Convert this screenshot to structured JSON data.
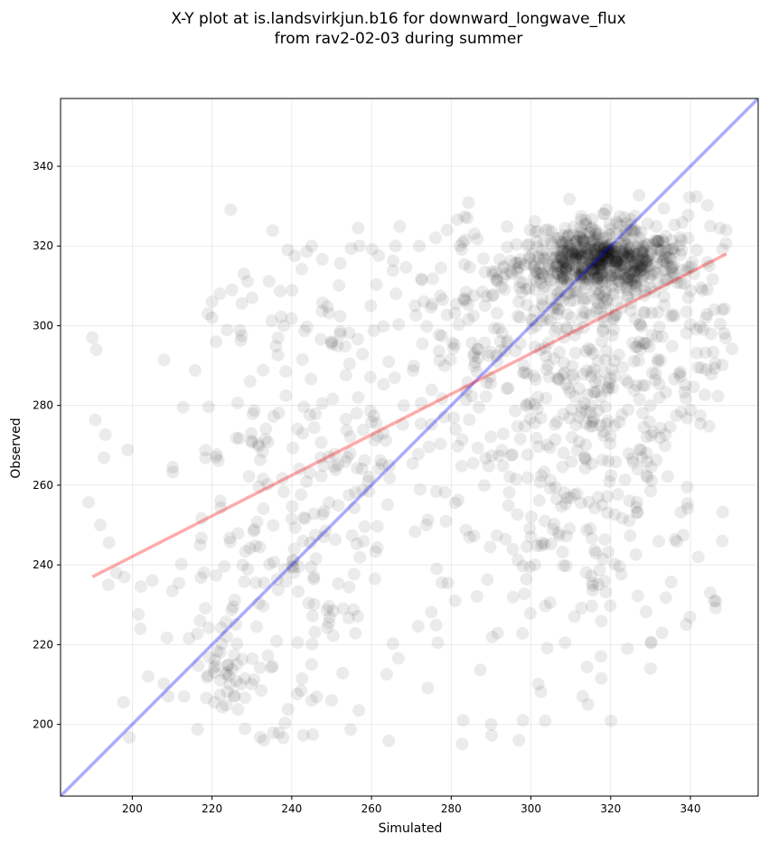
{
  "chart_data": {
    "type": "scatter",
    "title_line1": "X-Y plot at is.landsvirkjun.b16 for downward_longwave_flux",
    "title_line2": "from rav2-02-03 during summer",
    "xlabel": "Simulated",
    "ylabel": "Observed",
    "xlim": [
      182,
      357
    ],
    "ylim": [
      182,
      357
    ],
    "xticks": [
      200,
      220,
      240,
      260,
      280,
      300,
      320,
      340
    ],
    "yticks": [
      200,
      220,
      240,
      260,
      280,
      300,
      320,
      340
    ],
    "grid": true,
    "point_color": "#000000",
    "identity_line": {
      "color": "#0000ff",
      "x": [
        182,
        357
      ],
      "y": [
        182,
        357
      ]
    },
    "regression_line": {
      "color": "#ff0000",
      "x": [
        190,
        349
      ],
      "y": [
        237,
        318
      ]
    },
    "clusters": [
      {
        "cx": 317,
        "cy": 316,
        "sx": 10,
        "sy": 3.5,
        "n": 420
      },
      {
        "cx": 320,
        "cy": 316,
        "sx": 12,
        "sy": 7,
        "n": 260
      },
      {
        "cx": 315,
        "cy": 288,
        "sx": 13,
        "sy": 14,
        "n": 220
      },
      {
        "cx": 312,
        "cy": 248,
        "sx": 16,
        "sy": 18,
        "n": 170
      },
      {
        "cx": 290,
        "cy": 300,
        "sx": 14,
        "sy": 14,
        "n": 100
      },
      {
        "cx": 255,
        "cy": 275,
        "sx": 25,
        "sy": 32,
        "n": 240
      },
      {
        "cx": 235,
        "cy": 235,
        "sx": 14,
        "sy": 25,
        "n": 150
      },
      {
        "cx": 222,
        "cy": 212,
        "sx": 3,
        "sy": 6,
        "n": 30
      },
      {
        "cx": 340,
        "cy": 300,
        "sx": 6,
        "sy": 25,
        "n": 60
      }
    ],
    "points": [
      [
        190,
        297
      ],
      [
        191,
        294
      ],
      [
        192,
        250
      ],
      [
        194,
        235
      ],
      [
        196,
        238
      ],
      [
        198,
        237
      ],
      [
        202,
        224
      ],
      [
        204,
        212
      ],
      [
        209,
        207
      ],
      [
        213,
        207
      ],
      [
        217,
        226
      ],
      [
        218,
        238
      ],
      [
        217,
        245
      ],
      [
        219,
        303
      ],
      [
        220,
        306
      ],
      [
        221,
        296
      ],
      [
        221,
        267
      ],
      [
        233,
        196
      ],
      [
        245,
        206
      ],
      [
        250,
        206
      ],
      [
        283,
        201
      ],
      [
        290,
        200
      ],
      [
        297,
        196
      ],
      [
        298,
        201
      ],
      [
        342,
        242
      ],
      [
        345,
        233
      ],
      [
        346,
        231
      ],
      [
        348,
        246
      ],
      [
        345,
        325
      ],
      [
        349,
        324
      ],
      [
        346,
        304
      ],
      [
        348,
        304
      ],
      [
        344,
        289
      ],
      [
        330,
        214
      ],
      [
        313,
        207
      ],
      [
        284,
        327
      ],
      [
        279,
        324
      ],
      [
        272,
        320
      ],
      [
        266,
        320
      ],
      [
        257,
        320
      ],
      [
        245,
        320
      ],
      [
        239,
        319
      ],
      [
        228,
        313
      ],
      [
        225,
        309
      ],
      [
        222,
        308
      ],
      [
        220,
        302
      ],
      [
        250,
        296
      ],
      [
        238,
        300
      ]
    ]
  }
}
